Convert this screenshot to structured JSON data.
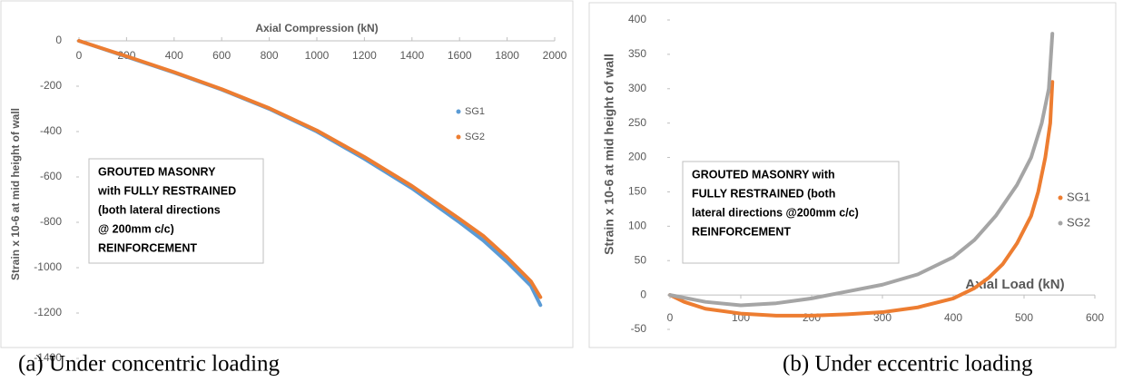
{
  "chart_data": [
    {
      "type": "line",
      "xlabel": "Axial Compression (kN)",
      "ylabel": "Strain x 10-6 at  mid height of wall",
      "xlim": [
        0,
        2000
      ],
      "xticks": [
        0,
        200,
        400,
        600,
        800,
        1000,
        1200,
        1400,
        1600,
        1800,
        2000
      ],
      "ylim": [
        -1400,
        0
      ],
      "yticks": [
        -1400,
        -1200,
        -1000,
        -800,
        -600,
        -400,
        -200,
        0
      ],
      "xaxis_position": "top",
      "legend": "right",
      "annotation": [
        "GROUTED MASONRY",
        "with FULLY RESTRAINED",
        "(both lateral directions",
        "@ 200mm c/c)",
        "REINFORCEMENT"
      ],
      "caption": "(a)  Under concentric loading",
      "series": [
        {
          "name": "SG1",
          "color": "#5b9bd5",
          "x": [
            0,
            200,
            400,
            600,
            800,
            1000,
            1200,
            1400,
            1600,
            1700,
            1800,
            1900,
            1940
          ],
          "values": [
            0,
            -70,
            -140,
            -215,
            -300,
            -400,
            -520,
            -650,
            -800,
            -880,
            -975,
            -1080,
            -1165
          ]
        },
        {
          "name": "SG2",
          "color": "#ed7d31",
          "x": [
            0,
            200,
            400,
            600,
            800,
            1000,
            1200,
            1400,
            1600,
            1700,
            1800,
            1900,
            1940
          ],
          "values": [
            0,
            -68,
            -138,
            -213,
            -297,
            -395,
            -512,
            -640,
            -785,
            -860,
            -955,
            -1060,
            -1130
          ]
        }
      ]
    },
    {
      "type": "line",
      "xlabel": "Axial Load (kN)",
      "ylabel": "Strain x 10-6 at mid height of wall",
      "xlim": [
        0,
        600
      ],
      "xticks": [
        0,
        100,
        200,
        300,
        400,
        500,
        600
      ],
      "ylim": [
        -50,
        400
      ],
      "yticks": [
        -50,
        0,
        50,
        100,
        150,
        200,
        250,
        300,
        350,
        400
      ],
      "xaxis_position": "bottom",
      "legend": "right",
      "annotation": [
        "GROUTED MASONRY with",
        "FULLY RESTRAINED (both",
        "lateral directions @200mm c/c)",
        "REINFORCEMENT"
      ],
      "caption": "(b) Under eccentric loading",
      "series": [
        {
          "name": "SG1",
          "color": "#ed7d31",
          "x": [
            0,
            20,
            50,
            100,
            150,
            200,
            250,
            300,
            350,
            400,
            430,
            450,
            470,
            490,
            510,
            520,
            530,
            537,
            540
          ],
          "values": [
            0,
            -10,
            -20,
            -27,
            -30,
            -30,
            -28,
            -25,
            -18,
            -5,
            10,
            25,
            45,
            75,
            115,
            150,
            200,
            250,
            310
          ]
        },
        {
          "name": "SG2",
          "color": "#a5a5a5",
          "x": [
            0,
            50,
            100,
            150,
            200,
            250,
            300,
            350,
            400,
            430,
            460,
            490,
            510,
            525,
            535,
            540
          ],
          "values": [
            0,
            -10,
            -15,
            -12,
            -5,
            5,
            15,
            30,
            55,
            80,
            115,
            160,
            200,
            250,
            300,
            380
          ]
        }
      ]
    }
  ]
}
